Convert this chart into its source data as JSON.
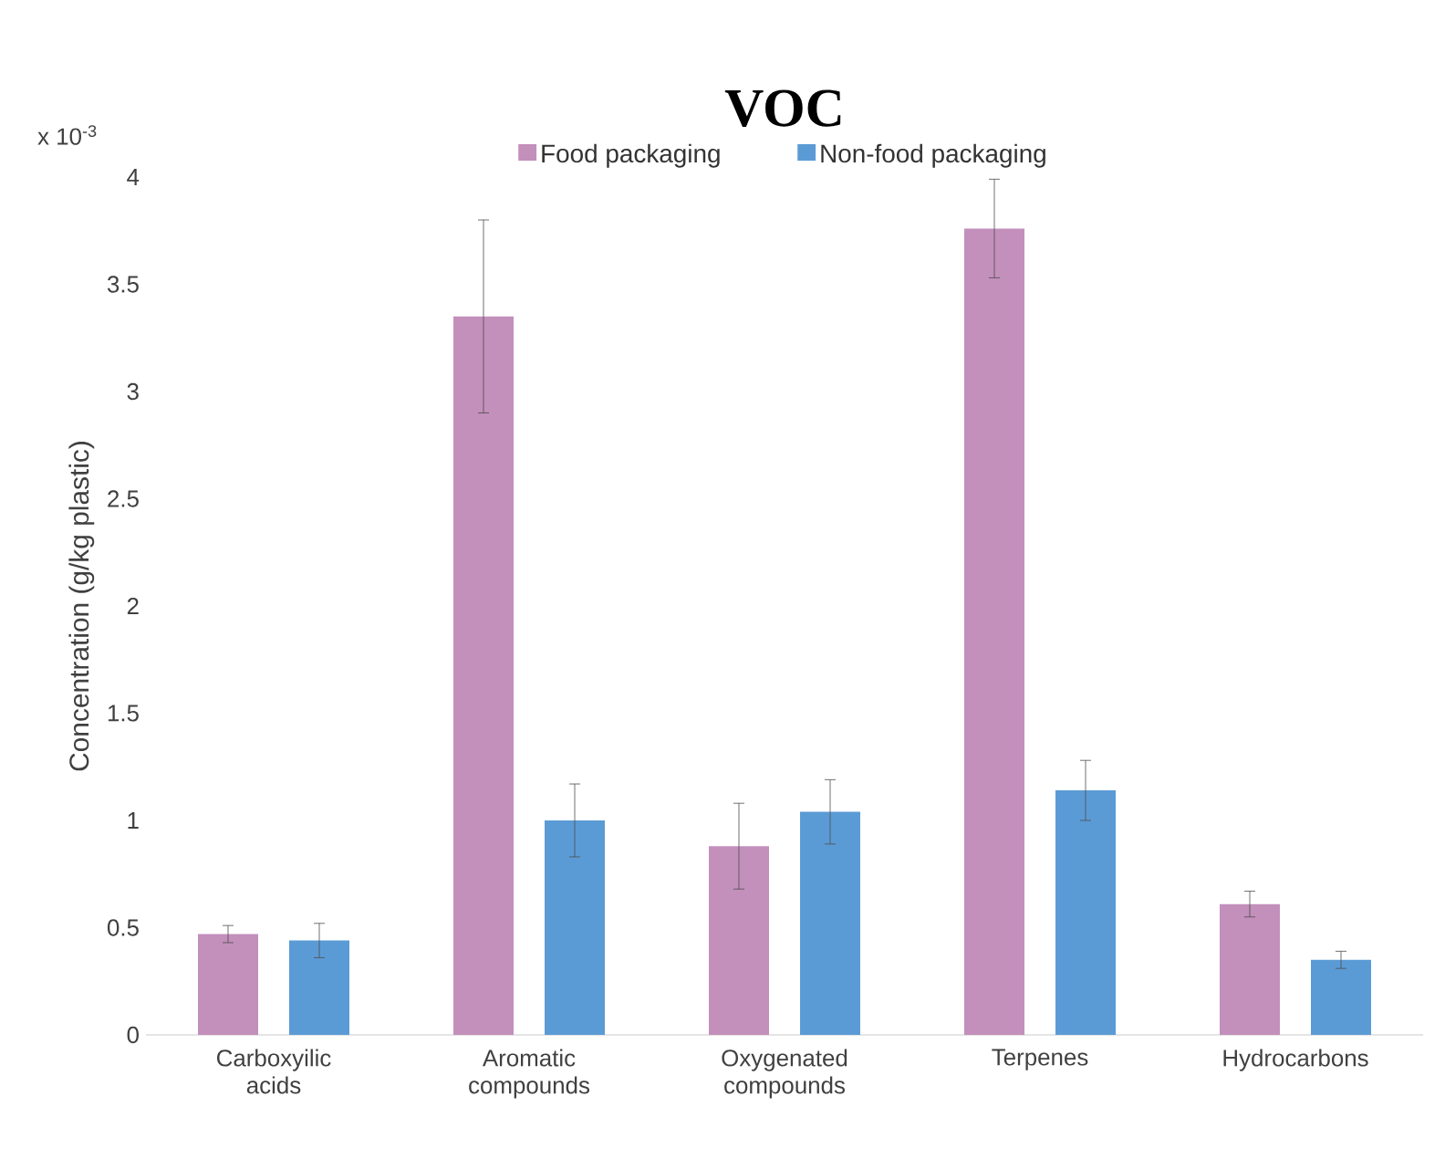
{
  "chart_data": {
    "type": "bar",
    "title": "VOC",
    "categories": [
      "Carboxyilic acids",
      "Aromatic compounds",
      "Oxygenated compounds",
      "Terpenes",
      "Hydrocarbons"
    ],
    "series": [
      {
        "name": "Food packaging",
        "color": "#c38fbb",
        "values": [
          0.47,
          3.35,
          0.88,
          3.76,
          0.61
        ],
        "errors": [
          0.04,
          0.45,
          0.2,
          0.23,
          0.06
        ]
      },
      {
        "name": "Non-food packaging",
        "color": "#5b9bd5",
        "values": [
          0.44,
          1.0,
          1.04,
          1.14,
          0.35
        ],
        "errors": [
          0.08,
          0.17,
          0.15,
          0.14,
          0.04
        ]
      }
    ],
    "ylabel": "Concentration (g/kg plastic)",
    "ylim": [
      0,
      4
    ],
    "yticks": [
      0,
      0.5,
      1,
      1.5,
      2,
      2.5,
      3,
      3.5,
      4
    ],
    "annotations": [
      "x 10$^{-3}$"
    ],
    "legend": "top",
    "grid": false
  }
}
